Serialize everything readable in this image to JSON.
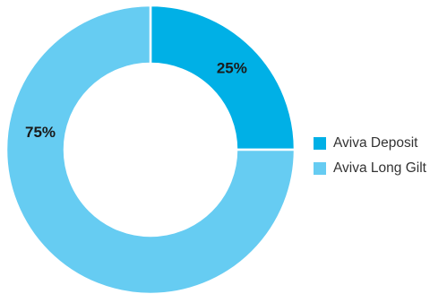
{
  "chart_data": {
    "type": "pie",
    "donut": true,
    "categories": [
      "Aviva Deposit",
      "Aviva Long Gilt"
    ],
    "values": [
      25,
      75
    ],
    "data_labels": [
      "25%",
      "75%"
    ],
    "colors": [
      "#00b0e6",
      "#66ccf2"
    ],
    "title": "",
    "legend_position": "right"
  },
  "legend": {
    "items": [
      {
        "label": "Aviva Deposit",
        "color": "#00b0e6"
      },
      {
        "label": "Aviva Long Gilt",
        "color": "#66ccf2"
      }
    ]
  }
}
